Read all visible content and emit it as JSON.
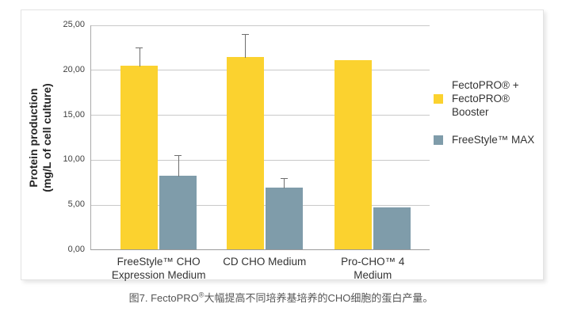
{
  "figure": {
    "caption": {
      "prefix": "图7. FectoPRO",
      "sup": "®",
      "suffix": "大幅提高不同培养基培养的CHO细胞的蛋白产量。"
    }
  },
  "chart_data": {
    "type": "bar",
    "title": "",
    "ylabel": "Protein production (mg/L of cell culture)",
    "ylabel_lines": [
      "Protein production",
      "(mg/L of cell culture)"
    ],
    "xlabel": "",
    "ylim": [
      0,
      25
    ],
    "ytick_step": 5,
    "ytick_labels": [
      "0,00",
      "5,00",
      "10,00",
      "15,00",
      "20,00",
      "25,00"
    ],
    "grid": true,
    "legend_position": "right",
    "categories": [
      [
        "FreeStyle™ CHO",
        "Expression Medium"
      ],
      [
        "CD CHO Medium"
      ],
      [
        "Pro-CHO™ 4",
        "Medium"
      ]
    ],
    "series": [
      {
        "name": "FectoPRO® + FectoPRO® Booster",
        "color": "#FBD22F",
        "values": [
          20.4,
          21.4,
          21.0
        ],
        "errors_plus": [
          2.1,
          2.6,
          0
        ]
      },
      {
        "name": "FreeStyle™ MAX",
        "color": "#7F9CAA",
        "values": [
          8.2,
          6.9,
          4.7
        ],
        "errors_plus": [
          2.4,
          1.1,
          0
        ]
      }
    ],
    "legend": [
      {
        "label_lines": [
          "FectoPRO® +",
          "FectoPRO® Booster"
        ],
        "color": "#FBD22F"
      },
      {
        "label_lines": [
          "FreeStyle™ MAX"
        ],
        "color": "#7F9CAA"
      }
    ],
    "colors": {
      "gridline": "#c9c9c9",
      "axis": "#9b9b9b",
      "error_bar": "#6e6e6e"
    }
  }
}
